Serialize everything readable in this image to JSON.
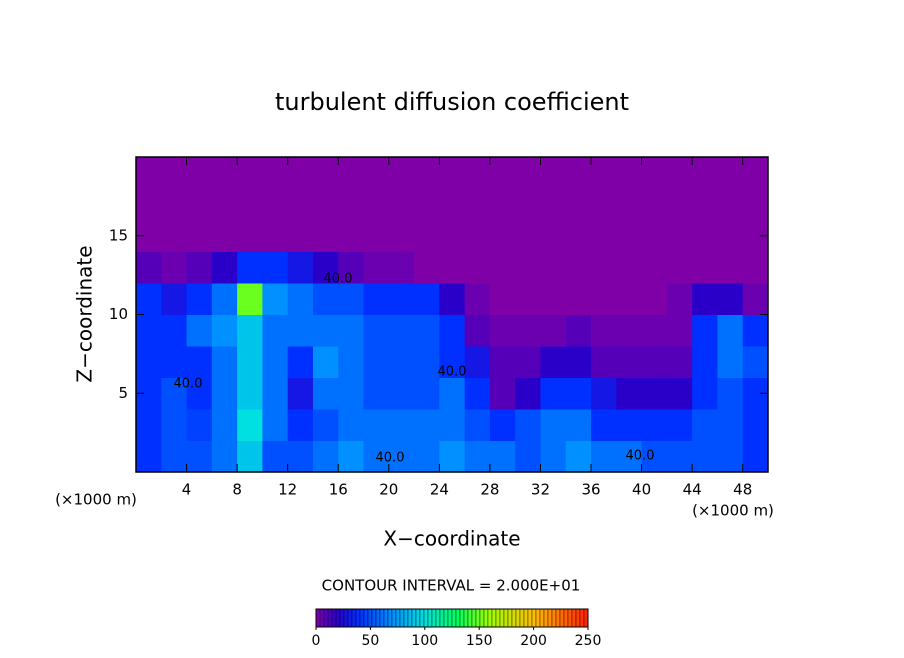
{
  "chart_data": {
    "type": "heatmap",
    "title": "turbulent diffusion coefficient",
    "x_label": "X−coordinate",
    "y_label": "Z−coordinate",
    "x_unit": "(×1000 m)",
    "y_unit": "(×1000 m)",
    "xlim": [
      0,
      50
    ],
    "ylim": [
      0,
      20
    ],
    "xticks": [
      4,
      8,
      12,
      16,
      20,
      24,
      28,
      32,
      36,
      40,
      44,
      48
    ],
    "yticks": [
      5,
      10,
      15
    ],
    "x": [
      1,
      3,
      5,
      7,
      9,
      11,
      13,
      15,
      17,
      19,
      21,
      23,
      25,
      27,
      29,
      31,
      33,
      35,
      37,
      39,
      41,
      43,
      45,
      47,
      49
    ],
    "z": [
      1,
      3,
      5,
      7,
      9,
      11,
      13,
      15,
      17,
      19
    ],
    "values": [
      [
        40,
        50,
        50,
        60,
        90,
        50,
        50,
        60,
        70,
        60,
        60,
        60,
        70,
        60,
        60,
        50,
        60,
        70,
        60,
        60,
        50,
        50,
        50,
        50,
        40
      ],
      [
        40,
        50,
        45,
        60,
        100,
        60,
        40,
        50,
        60,
        60,
        60,
        60,
        60,
        50,
        40,
        50,
        60,
        60,
        40,
        40,
        40,
        40,
        50,
        50,
        40
      ],
      [
        40,
        50,
        40,
        60,
        90,
        60,
        30,
        60,
        60,
        50,
        50,
        50,
        60,
        40,
        10,
        20,
        40,
        40,
        30,
        20,
        20,
        20,
        40,
        50,
        40
      ],
      [
        40,
        40,
        40,
        60,
        90,
        60,
        40,
        70,
        60,
        50,
        50,
        50,
        40,
        30,
        10,
        10,
        20,
        20,
        10,
        10,
        10,
        10,
        40,
        60,
        50
      ],
      [
        40,
        40,
        60,
        70,
        90,
        60,
        60,
        60,
        60,
        50,
        50,
        50,
        40,
        10,
        5,
        5,
        5,
        10,
        5,
        5,
        5,
        5,
        40,
        60,
        40
      ],
      [
        40,
        30,
        40,
        60,
        150,
        70,
        60,
        50,
        50,
        40,
        40,
        40,
        20,
        5,
        0,
        0,
        0,
        0,
        0,
        0,
        0,
        5,
        20,
        20,
        5
      ],
      [
        10,
        5,
        10,
        20,
        40,
        40,
        30,
        20,
        10,
        5,
        5,
        0,
        0,
        0,
        0,
        0,
        0,
        0,
        0,
        0,
        0,
        0,
        0,
        0,
        0
      ],
      [
        0,
        0,
        0,
        0,
        0,
        0,
        0,
        0,
        0,
        0,
        0,
        0,
        0,
        0,
        0,
        0,
        0,
        0,
        0,
        0,
        0,
        0,
        0,
        0,
        0
      ],
      [
        0,
        0,
        0,
        0,
        0,
        0,
        0,
        0,
        0,
        0,
        0,
        0,
        0,
        0,
        0,
        0,
        0,
        0,
        0,
        0,
        0,
        0,
        0,
        0,
        0
      ],
      [
        0,
        0,
        0,
        0,
        0,
        0,
        0,
        0,
        0,
        0,
        0,
        0,
        0,
        0,
        0,
        0,
        0,
        0,
        0,
        0,
        0,
        0,
        0,
        0,
        0
      ]
    ],
    "contour_labels": [
      "40.0",
      "40.0",
      "40.0",
      "40.0",
      "40.0"
    ],
    "contour_interval": "CONTOUR INTERVAL = 2.000E+01",
    "colorbar_lim": [
      0,
      250
    ],
    "colorbar_ticks": [
      0,
      50,
      100,
      150,
      200,
      250
    ],
    "colorscale": [
      [
        0,
        "#8000a8"
      ],
      [
        20,
        "#2a00c8"
      ],
      [
        40,
        "#0030ff"
      ],
      [
        70,
        "#0090ff"
      ],
      [
        100,
        "#00e0e0"
      ],
      [
        130,
        "#00ff60"
      ],
      [
        160,
        "#a0ff00"
      ],
      [
        200,
        "#ffc000"
      ],
      [
        250,
        "#ff2000"
      ]
    ]
  }
}
